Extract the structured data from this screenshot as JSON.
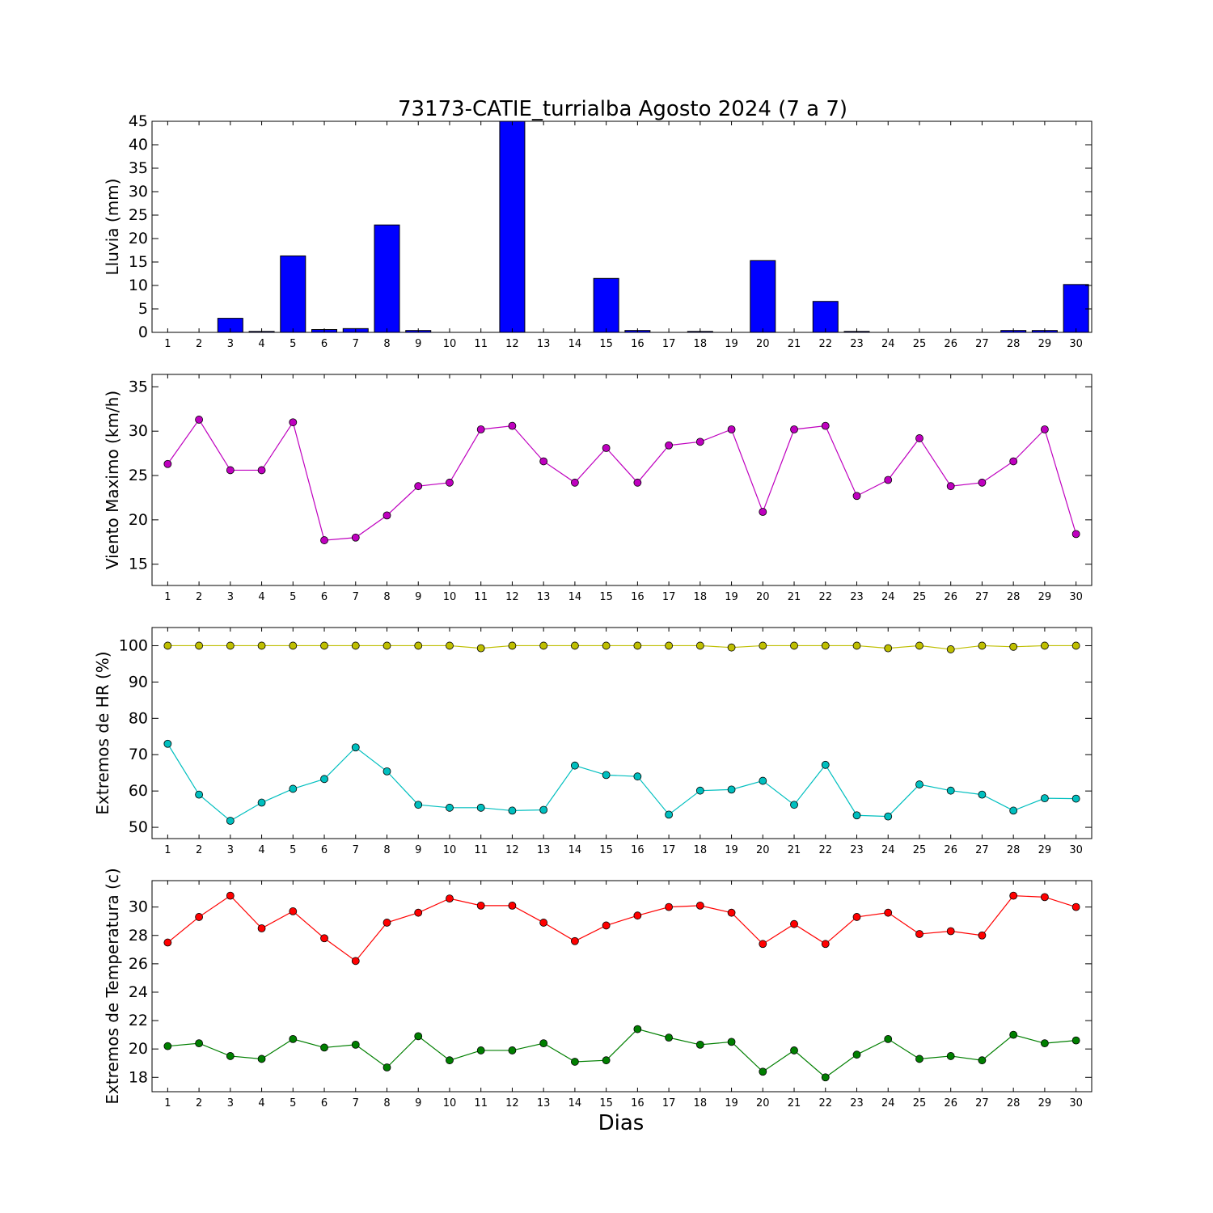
{
  "title": "73173-CATIE_turrialba Agosto 2024  (7 a 7)",
  "xlabel": "Dias",
  "chart_data": [
    {
      "id": "lluvia",
      "type": "bar",
      "ylabel": "Lluvia (mm)",
      "ylim": [
        0,
        45
      ],
      "yticks": [
        0,
        5,
        10,
        15,
        20,
        25,
        30,
        35,
        40,
        45
      ],
      "x": [
        1,
        2,
        3,
        4,
        5,
        6,
        7,
        8,
        9,
        10,
        11,
        12,
        13,
        14,
        15,
        16,
        17,
        18,
        19,
        20,
        21,
        22,
        23,
        24,
        25,
        26,
        27,
        28,
        29,
        30
      ],
      "series": [
        {
          "color": "#0000ff",
          "values": [
            0,
            0,
            3.0,
            0.2,
            16.3,
            0.6,
            0.8,
            22.9,
            0.4,
            0,
            0,
            45.6,
            0,
            0,
            11.5,
            0.4,
            0,
            0.2,
            0,
            15.3,
            0,
            6.6,
            0.2,
            0,
            0,
            0,
            0,
            0.4,
            0.4,
            10.2
          ]
        }
      ]
    },
    {
      "id": "viento",
      "type": "line",
      "ylabel": "Viento Maximo (km/h)",
      "ylim": [
        12.6,
        36.4
      ],
      "yticks": [
        15,
        20,
        25,
        30,
        35
      ],
      "x": [
        1,
        2,
        3,
        4,
        5,
        6,
        7,
        8,
        9,
        10,
        11,
        12,
        13,
        14,
        15,
        16,
        17,
        18,
        19,
        20,
        21,
        22,
        23,
        24,
        25,
        26,
        27,
        28,
        29,
        30
      ],
      "series": [
        {
          "color": "#bf00bf",
          "values": [
            26.3,
            31.3,
            25.6,
            25.6,
            31.0,
            17.7,
            18.0,
            20.5,
            23.8,
            24.2,
            30.2,
            30.6,
            26.6,
            24.2,
            28.1,
            24.2,
            28.4,
            28.8,
            30.2,
            20.9,
            30.2,
            30.6,
            22.7,
            24.5,
            29.2,
            23.8,
            24.2,
            26.6,
            30.2,
            18.4
          ]
        }
      ]
    },
    {
      "id": "hr",
      "type": "line",
      "ylabel": "Extremos de HR (%)",
      "ylim": [
        46.9,
        105.0
      ],
      "yticks": [
        50,
        60,
        70,
        80,
        90,
        100
      ],
      "x": [
        1,
        2,
        3,
        4,
        5,
        6,
        7,
        8,
        9,
        10,
        11,
        12,
        13,
        14,
        15,
        16,
        17,
        18,
        19,
        20,
        21,
        22,
        23,
        24,
        25,
        26,
        27,
        28,
        29,
        30
      ],
      "series": [
        {
          "color": "#bfbf00",
          "values": [
            100,
            100,
            100,
            100,
            100,
            100,
            100,
            100,
            100,
            100,
            99.3,
            100,
            100,
            100,
            100,
            100,
            100,
            100,
            99.5,
            100,
            100,
            100,
            100,
            99.3,
            100,
            99.0,
            100,
            99.7,
            100,
            100
          ]
        },
        {
          "color": "#00bfbf",
          "values": [
            73.0,
            59.0,
            51.8,
            56.8,
            60.6,
            63.3,
            72.0,
            65.4,
            56.2,
            55.4,
            55.4,
            54.6,
            54.8,
            67.0,
            64.4,
            64.0,
            53.5,
            60.1,
            60.4,
            62.8,
            56.2,
            67.2,
            53.3,
            53.0,
            61.8,
            60.1,
            59.0,
            54.6,
            58.0,
            57.9
          ]
        }
      ]
    },
    {
      "id": "temp",
      "type": "line",
      "ylabel": "Extremos de Temperatura (c)",
      "ylim": [
        16.99,
        31.86
      ],
      "yticks": [
        18,
        20,
        22,
        24,
        26,
        28,
        30
      ],
      "x": [
        1,
        2,
        3,
        4,
        5,
        6,
        7,
        8,
        9,
        10,
        11,
        12,
        13,
        14,
        15,
        16,
        17,
        18,
        19,
        20,
        21,
        22,
        23,
        24,
        25,
        26,
        27,
        28,
        29,
        30
      ],
      "series": [
        {
          "color": "#ff0000",
          "values": [
            27.5,
            29.3,
            30.8,
            28.5,
            29.7,
            27.8,
            26.2,
            28.9,
            29.6,
            30.6,
            30.1,
            30.1,
            28.9,
            27.6,
            28.7,
            29.4,
            30.0,
            30.1,
            29.6,
            27.4,
            28.8,
            27.4,
            29.3,
            29.6,
            28.1,
            28.3,
            28.0,
            30.8,
            30.7,
            30.0
          ]
        },
        {
          "color": "#007f00",
          "values": [
            20.2,
            20.4,
            19.5,
            19.3,
            20.7,
            20.1,
            20.3,
            18.7,
            20.9,
            19.2,
            19.9,
            19.9,
            20.4,
            19.1,
            19.2,
            21.4,
            20.8,
            20.3,
            20.5,
            18.4,
            19.9,
            18.0,
            19.6,
            20.7,
            19.3,
            19.5,
            19.2,
            21.0,
            20.4,
            20.6
          ]
        }
      ]
    }
  ]
}
